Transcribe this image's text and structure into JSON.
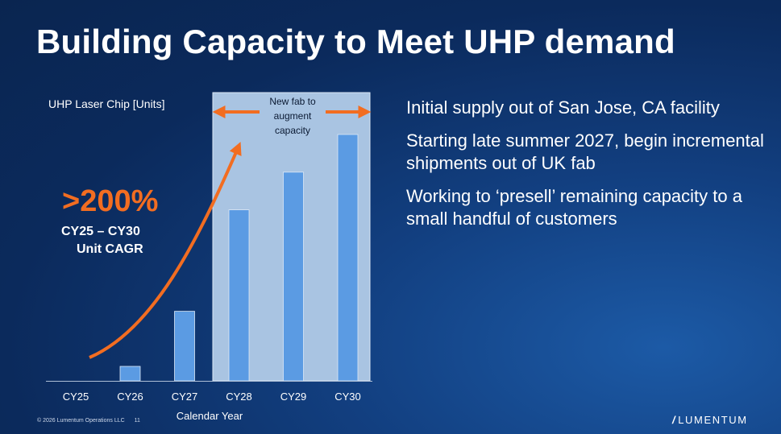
{
  "slide": {
    "title": "Building Capacity to Meet UHP demand",
    "bullets": [
      "Initial supply out of San Jose, CA facility",
      "Starting late summer 2027, begin incremental shipments out of UK fab",
      "Working to ‘presell’ remaining capacity to a small handful of customers"
    ],
    "footer_text": "© 2026 Lumentum Operations LLC",
    "page_number": "11",
    "logo_text": "LUMENTUM"
  },
  "chart_data": {
    "type": "bar",
    "ylabel": "UHP Laser Chip [Units]",
    "xlabel": "Calendar Year",
    "categories": [
      "CY25",
      "CY26",
      "CY27",
      "CY28",
      "CY29",
      "CY30"
    ],
    "values": [
      0,
      5,
      24,
      59,
      72,
      85
    ],
    "ylim": [
      0,
      100
    ],
    "bar_color": "#5b9be3",
    "highlight": {
      "from": "CY28",
      "to": "CY30",
      "label": "New fab to augment capacity",
      "color": "#a9c4e2"
    },
    "callout": {
      "value": ">200%",
      "line1": "CY25 – CY30",
      "line2": "Unit CAGR",
      "color": "#f26d21"
    }
  }
}
